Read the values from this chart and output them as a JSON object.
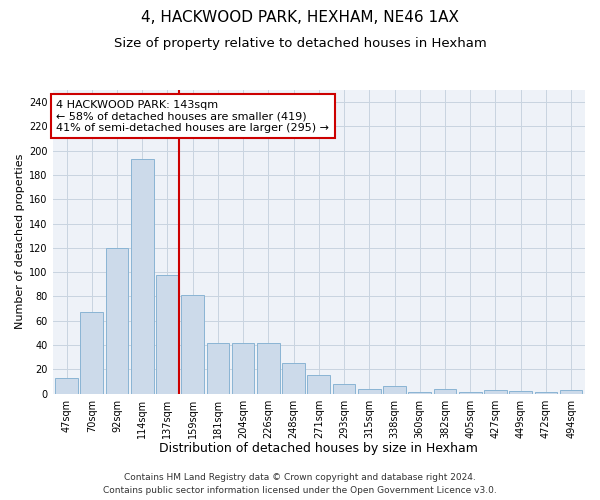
{
  "title": "4, HACKWOOD PARK, HEXHAM, NE46 1AX",
  "subtitle": "Size of property relative to detached houses in Hexham",
  "xlabel": "Distribution of detached houses by size in Hexham",
  "ylabel": "Number of detached properties",
  "bar_labels": [
    "47sqm",
    "70sqm",
    "92sqm",
    "114sqm",
    "137sqm",
    "159sqm",
    "181sqm",
    "204sqm",
    "226sqm",
    "248sqm",
    "271sqm",
    "293sqm",
    "315sqm",
    "338sqm",
    "360sqm",
    "382sqm",
    "405sqm",
    "427sqm",
    "449sqm",
    "472sqm",
    "494sqm"
  ],
  "bar_values": [
    13,
    67,
    120,
    193,
    98,
    81,
    42,
    42,
    42,
    25,
    15,
    8,
    4,
    6,
    1,
    4,
    1,
    3,
    2,
    1,
    3
  ],
  "bar_color": "#ccdaea",
  "bar_edge_color": "#8ab4d4",
  "highlight_line_index": 4,
  "highlight_line_color": "#cc0000",
  "annotation_text": "4 HACKWOOD PARK: 143sqm\n← 58% of detached houses are smaller (419)\n41% of semi-detached houses are larger (295) →",
  "annotation_box_facecolor": "#ffffff",
  "annotation_box_edgecolor": "#cc0000",
  "ylim": [
    0,
    250
  ],
  "yticks": [
    0,
    20,
    40,
    60,
    80,
    100,
    120,
    140,
    160,
    180,
    200,
    220,
    240
  ],
  "plot_bg_color": "#eef2f8",
  "grid_color": "#c8d4e0",
  "title_fontsize": 11,
  "subtitle_fontsize": 9.5,
  "xlabel_fontsize": 9,
  "ylabel_fontsize": 8,
  "tick_fontsize": 7,
  "annotation_fontsize": 8,
  "footer_fontsize": 6.5,
  "footer_text": "Contains HM Land Registry data © Crown copyright and database right 2024.\nContains public sector information licensed under the Open Government Licence v3.0."
}
